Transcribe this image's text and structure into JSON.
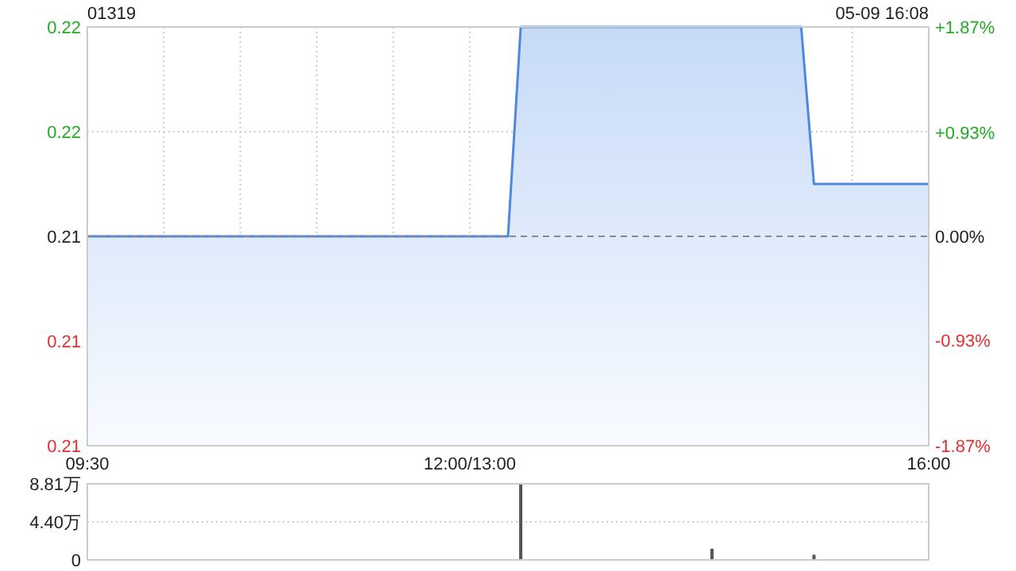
{
  "chart_data": [
    {
      "type": "area",
      "title": "01319",
      "annotations": [
        "05-09 16:08"
      ],
      "categories": [
        "09:30",
        null,
        null,
        null,
        null,
        null,
        null,
        null,
        null,
        null,
        null,
        null,
        null,
        null,
        null,
        null,
        null,
        null,
        null,
        null,
        null,
        null,
        null,
        null,
        null,
        null,
        null,
        null,
        null,
        null,
        "12:00/13:00",
        null,
        null,
        null,
        null,
        null,
        null,
        null,
        null,
        null,
        null,
        null,
        null,
        null,
        null,
        null,
        null,
        null,
        null,
        null,
        null,
        null,
        null,
        null,
        null,
        null,
        null,
        null,
        null,
        null,
        null,
        null,
        null,
        null,
        null,
        null,
        "16:00"
      ],
      "values": [
        0.214,
        0.214,
        0.214,
        0.214,
        0.214,
        0.214,
        0.214,
        0.214,
        0.214,
        0.214,
        0.214,
        0.214,
        0.214,
        0.214,
        0.214,
        0.214,
        0.214,
        0.214,
        0.214,
        0.214,
        0.214,
        0.214,
        0.214,
        0.214,
        0.214,
        0.214,
        0.214,
        0.214,
        0.214,
        0.214,
        0.214,
        0.214,
        0.214,
        0.214,
        0.218,
        0.218,
        0.218,
        0.218,
        0.218,
        0.218,
        0.218,
        0.218,
        0.218,
        0.218,
        0.218,
        0.218,
        0.218,
        0.218,
        0.218,
        0.218,
        0.218,
        0.218,
        0.218,
        0.218,
        0.218,
        0.218,
        0.218,
        0.215,
        0.215,
        0.215,
        0.215,
        0.215,
        0.215,
        0.215,
        0.215,
        0.215,
        0.215
      ],
      "color": "#4f86e0",
      "ylim": [
        0.21,
        0.218
      ],
      "yticks": [
        {
          "value": 0.218,
          "label": "0.22"
        },
        {
          "value": 0.216,
          "label": "0.22"
        },
        {
          "value": 0.214,
          "label": "0.21"
        },
        {
          "value": 0.212,
          "label": "0.21"
        },
        {
          "value": 0.21,
          "label": "0.21"
        }
      ],
      "y2lim": [
        -1.87,
        1.87
      ],
      "y2ticks": [
        {
          "value": 1.87,
          "label": "+1.87%"
        },
        {
          "value": 0.93,
          "label": "+0.93%"
        },
        {
          "value": 0,
          "label": "0.00%"
        },
        {
          "value": -0.93,
          "label": "-0.93%"
        },
        {
          "value": -1.87,
          "label": "-1.87%"
        }
      ],
      "ref_lines": [
        {
          "axis": "y",
          "value": 0.214,
          "label": null,
          "color": "#888888",
          "line_style": "dashed"
        }
      ],
      "grid": true
    },
    {
      "type": "bar",
      "categories": [
        null,
        null,
        null,
        null,
        null,
        null,
        null,
        null,
        null,
        null,
        null,
        null,
        null,
        null,
        null,
        null,
        null,
        null,
        null,
        null,
        null,
        null,
        null,
        null,
        null,
        null,
        null,
        null,
        null,
        null,
        null,
        null,
        null,
        null,
        null,
        null,
        null,
        null,
        null,
        null,
        null,
        null,
        null,
        null,
        null,
        null,
        null,
        null,
        null,
        null,
        null,
        null,
        null,
        null,
        null,
        null,
        null,
        null,
        null,
        null,
        null,
        null,
        null,
        null,
        null,
        null,
        null
      ],
      "values": [
        null,
        null,
        null,
        null,
        null,
        null,
        null,
        null,
        null,
        null,
        null,
        null,
        null,
        null,
        null,
        null,
        null,
        null,
        null,
        null,
        null,
        null,
        null,
        null,
        null,
        null,
        null,
        null,
        null,
        null,
        null,
        null,
        null,
        null,
        8.8,
        null,
        null,
        null,
        null,
        null,
        null,
        null,
        null,
        null,
        null,
        null,
        null,
        null,
        null,
        1.3,
        null,
        null,
        null,
        null,
        null,
        null,
        null,
        0.6,
        null,
        null,
        null,
        null,
        null,
        null,
        null,
        null,
        null
      ],
      "color": "#555555",
      "ylim": [
        0,
        8.81
      ],
      "yticks": [
        {
          "value": 8.81,
          "label": "8.81万"
        },
        {
          "value": 4.4,
          "label": "4.40万"
        },
        0
      ],
      "grid": "y",
      "tick_labels": "y"
    }
  ]
}
